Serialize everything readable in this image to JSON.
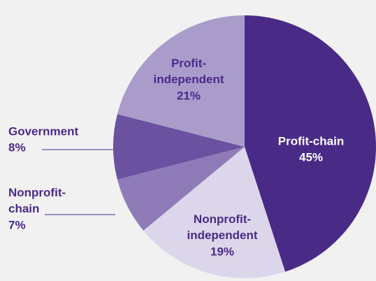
{
  "chart_data": {
    "type": "pie",
    "categories": [
      "Profit-chain",
      "Nonprofit-independent",
      "Nonprofit-chain",
      "Government",
      "Profit-independent"
    ],
    "values": [
      45,
      19,
      7,
      8,
      21
    ],
    "value_labels": [
      "45%",
      "19%",
      "7%",
      "8%",
      "21%"
    ],
    "colors": [
      "#4a2a87",
      "#dcd6ea",
      "#8e7bb8",
      "#6a52a0",
      "#a99ccb"
    ]
  }
}
